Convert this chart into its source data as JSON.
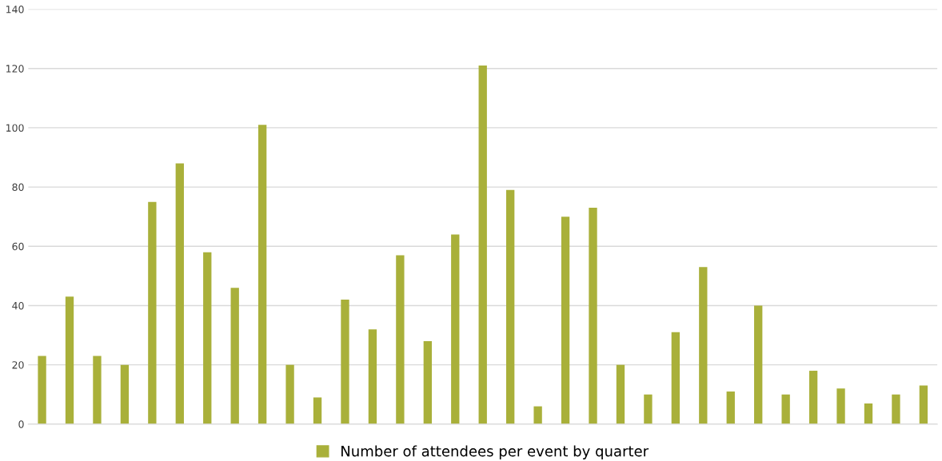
{
  "chart_data": {
    "type": "bar",
    "categories": [
      null,
      null,
      null,
      null,
      null,
      null,
      null,
      null,
      null,
      null,
      null,
      null,
      null,
      null,
      null,
      null,
      null,
      null,
      null,
      null,
      null,
      null,
      null,
      null,
      null,
      null,
      null,
      null,
      null,
      null,
      null,
      null,
      null
    ],
    "series": [
      {
        "name": "Number of attendees per event by quarter",
        "color": "#a9b03a",
        "values": [
          23,
          43,
          23,
          20,
          75,
          88,
          58,
          46,
          101,
          20,
          9,
          42,
          32,
          57,
          28,
          64,
          121,
          79,
          6,
          70,
          73,
          20,
          10,
          31,
          53,
          11,
          40,
          10,
          18,
          12,
          7,
          10,
          13
        ]
      }
    ],
    "ylim": [
      0,
      140
    ],
    "yticks": [
      0,
      20,
      40,
      60,
      80,
      100,
      120,
      140
    ],
    "grid": "y",
    "legend": "bottom"
  }
}
